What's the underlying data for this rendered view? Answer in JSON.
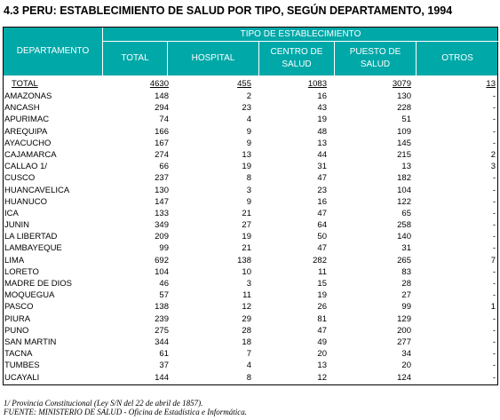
{
  "title": "4.3  PERU: ESTABLECIMIENTO DE SALUD POR TIPO, SEGÚN DEPARTAMENTO, 1994",
  "header": {
    "departamento": "DEPARTAMENTO",
    "group": "TIPO DE ESTABLECIMIENTO",
    "total": "TOTAL",
    "hospital": "HOSPITAL",
    "centro_l1": "CENTRO DE",
    "centro_l2": "SALUD",
    "puesto_l1": "PUESTO DE",
    "puesto_l2": "SALUD",
    "otros": "OTROS"
  },
  "total_row": {
    "dept": "TOTAL",
    "total": "4630",
    "hospital": "455",
    "centro": "1083",
    "puesto": "3079",
    "otros": "13"
  },
  "rows": [
    {
      "dept": "AMAZONAS",
      "total": "148",
      "hospital": "2",
      "centro": "16",
      "puesto": "130",
      "otros": "-"
    },
    {
      "dept": "ANCASH",
      "total": "294",
      "hospital": "23",
      "centro": "43",
      "puesto": "228",
      "otros": "-"
    },
    {
      "dept": "APURIMAC",
      "total": "74",
      "hospital": "4",
      "centro": "19",
      "puesto": "51",
      "otros": "-"
    },
    {
      "dept": "AREQUIPA",
      "total": "166",
      "hospital": "9",
      "centro": "48",
      "puesto": "109",
      "otros": "-"
    },
    {
      "dept": "AYACUCHO",
      "total": "167",
      "hospital": "9",
      "centro": "13",
      "puesto": "145",
      "otros": "-"
    },
    {
      "dept": "CAJAMARCA",
      "total": "274",
      "hospital": "13",
      "centro": "44",
      "puesto": "215",
      "otros": "2"
    },
    {
      "dept": "CALLAO 1/",
      "total": "66",
      "hospital": "19",
      "centro": "31",
      "puesto": "13",
      "otros": "3"
    },
    {
      "dept": "CUSCO",
      "total": "237",
      "hospital": "8",
      "centro": "47",
      "puesto": "182",
      "otros": "-"
    },
    {
      "dept": "HUANCAVELICA",
      "total": "130",
      "hospital": "3",
      "centro": "23",
      "puesto": "104",
      "otros": "-"
    },
    {
      "dept": "HUANUCO",
      "total": "147",
      "hospital": "9",
      "centro": "16",
      "puesto": "122",
      "otros": "-"
    },
    {
      "dept": "ICA",
      "total": "133",
      "hospital": "21",
      "centro": "47",
      "puesto": "65",
      "otros": "-"
    },
    {
      "dept": "JUNIN",
      "total": "349",
      "hospital": "27",
      "centro": "64",
      "puesto": "258",
      "otros": "-"
    },
    {
      "dept": "LA LIBERTAD",
      "total": "209",
      "hospital": "19",
      "centro": "50",
      "puesto": "140",
      "otros": "-"
    },
    {
      "dept": "LAMBAYEQUE",
      "total": "99",
      "hospital": "21",
      "centro": "47",
      "puesto": "31",
      "otros": "-"
    },
    {
      "dept": "LIMA",
      "total": "692",
      "hospital": "138",
      "centro": "282",
      "puesto": "265",
      "otros": "7"
    },
    {
      "dept": "LORETO",
      "total": "104",
      "hospital": "10",
      "centro": "11",
      "puesto": "83",
      "otros": "-"
    },
    {
      "dept": "MADRE DE DIOS",
      "total": "46",
      "hospital": "3",
      "centro": "15",
      "puesto": "28",
      "otros": "-"
    },
    {
      "dept": "MOQUEGUA",
      "total": "57",
      "hospital": "11",
      "centro": "19",
      "puesto": "27",
      "otros": "-"
    },
    {
      "dept": "PASCO",
      "total": "138",
      "hospital": "12",
      "centro": "26",
      "puesto": "99",
      "otros": "1"
    },
    {
      "dept": "PIURA",
      "total": "239",
      "hospital": "29",
      "centro": "81",
      "puesto": "129",
      "otros": "-"
    },
    {
      "dept": "PUNO",
      "total": "275",
      "hospital": "28",
      "centro": "47",
      "puesto": "200",
      "otros": "-"
    },
    {
      "dept": "SAN MARTIN",
      "total": "344",
      "hospital": "18",
      "centro": "49",
      "puesto": "277",
      "otros": "-"
    },
    {
      "dept": "TACNA",
      "total": "61",
      "hospital": "7",
      "centro": "20",
      "puesto": "34",
      "otros": "-"
    },
    {
      "dept": "TUMBES",
      "total": "37",
      "hospital": "4",
      "centro": "13",
      "puesto": "20",
      "otros": "-"
    },
    {
      "dept": "UCAYALI",
      "total": "144",
      "hospital": "8",
      "centro": "12",
      "puesto": "124",
      "otros": "-"
    }
  ],
  "notes": {
    "note1": "1/ Provincia Constitucional (Ley S/N del 22 de abril de 1857).",
    "source": "FUENTE: MINISTERIO DE SALUD - Oficina de Estadística e Informática."
  },
  "colors": {
    "header_bg": "#00a8a8",
    "header_text": "#ffffff"
  }
}
